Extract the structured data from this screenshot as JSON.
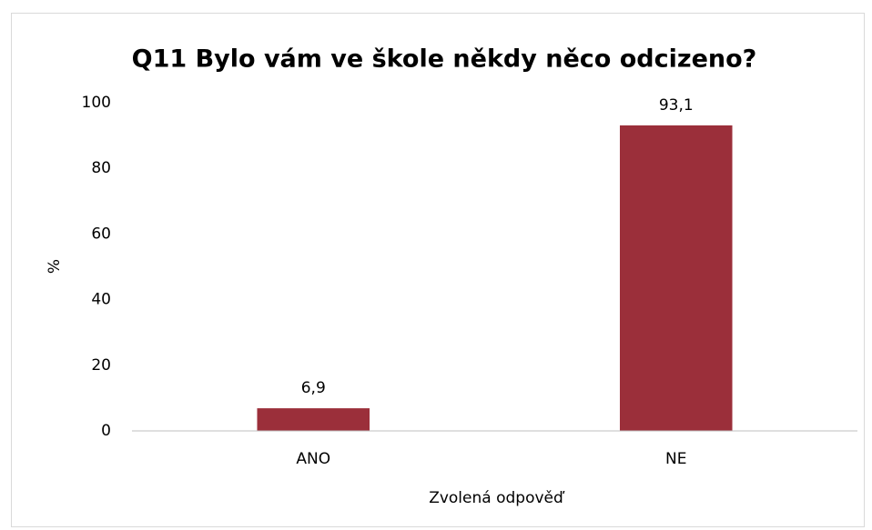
{
  "chart_data": {
    "type": "bar",
    "title": "Q11 Bylo vám ve škole někdy něco odcizeno?",
    "categories": [
      "ANO",
      "NE"
    ],
    "values": [
      6.9,
      93.1
    ],
    "value_labels": [
      "6,9",
      "93,1"
    ],
    "color": "#9b2f3a",
    "x_label": "Zvolená odpověď",
    "y_label": "%",
    "ylim": [
      0,
      100
    ],
    "yticks": [
      0,
      20,
      40,
      60,
      80,
      100
    ],
    "grid": false
  }
}
